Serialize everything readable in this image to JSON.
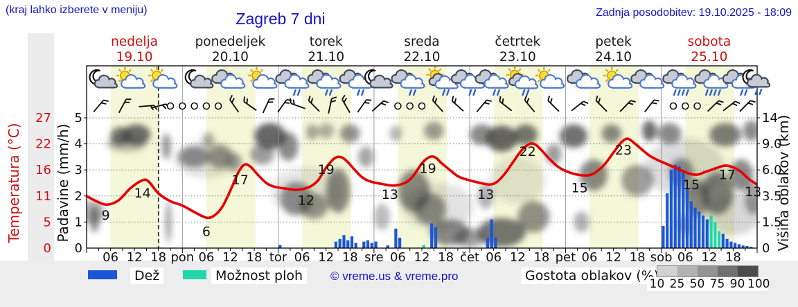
{
  "header": {
    "hint": "(kraj lahko izberete v meniju)",
    "title": "Zagreb 7 dni",
    "updated": "Zadnja posodobitev: 19.10.2025 - 18:09"
  },
  "days": [
    {
      "name": "nedelja",
      "date": "19.10",
      "red": true
    },
    {
      "name": "ponedeljek",
      "date": "20.10",
      "red": false
    },
    {
      "name": "torek",
      "date": "21.10",
      "red": false
    },
    {
      "name": "sreda",
      "date": "22.10",
      "red": false
    },
    {
      "name": "četrtek",
      "date": "23.10",
      "red": false
    },
    {
      "name": "petek",
      "date": "24.10",
      "red": false
    },
    {
      "name": "sobota",
      "date": "25.10",
      "red": true
    }
  ],
  "axes": {
    "temp_label": "Temperatura (°C)",
    "temp_ticks": [
      "27",
      "22",
      "16",
      "11",
      "5",
      "0"
    ],
    "rain_label": "Padavine (mm/h)",
    "rain_ticks": [
      "5",
      "4",
      "3",
      "2",
      "1",
      "0"
    ],
    "cloud_label": "Višina oblakov (km)",
    "cloud_ticks": [
      "14",
      "9.0",
      "6.0",
      "3.5",
      "1.5",
      "0"
    ],
    "hour_labels": [
      "06",
      "12",
      "18"
    ],
    "day_short": [
      "",
      "pon",
      "tor",
      "sre",
      "čet",
      "pet",
      "sob"
    ]
  },
  "legend": {
    "rain": "Dež",
    "showers": "Možnost ploh",
    "copyright": "© vreme.us & vreme.pro",
    "cloud_density": "Gostota oblakov (%)",
    "density_ticks": [
      "10",
      "25",
      "50",
      "75",
      "90",
      "100"
    ]
  },
  "chart_data": {
    "type": "meteogram",
    "hours_total": 168,
    "now_hour": 18,
    "daylight_hours": [
      6,
      18.3
    ],
    "temp_scale_c_to_grid": [
      [
        0,
        0
      ],
      [
        5,
        1
      ],
      [
        11,
        2
      ],
      [
        16,
        3
      ],
      [
        22,
        4
      ],
      [
        27,
        5
      ]
    ],
    "height_scale_km_to_grid": [
      [
        0,
        0
      ],
      [
        1.5,
        1
      ],
      [
        3.5,
        2
      ],
      [
        6,
        3
      ],
      [
        9,
        4
      ],
      [
        14,
        5
      ]
    ],
    "temperature": {
      "unit": "°C",
      "series": [
        [
          0,
          11
        ],
        [
          2,
          10
        ],
        [
          5,
          9
        ],
        [
          8,
          10
        ],
        [
          11,
          12.5
        ],
        [
          14,
          14
        ],
        [
          15.5,
          13.8
        ],
        [
          18,
          11.5
        ],
        [
          21,
          9.8
        ],
        [
          24,
          8.8
        ],
        [
          27,
          7.3
        ],
        [
          30,
          6
        ],
        [
          32,
          6.5
        ],
        [
          34,
          8.5
        ],
        [
          36,
          12
        ],
        [
          38,
          15.5
        ],
        [
          39.5,
          17.2
        ],
        [
          41,
          16.8
        ],
        [
          43,
          15
        ],
        [
          45,
          13.5
        ],
        [
          47,
          12.8
        ],
        [
          50,
          12.4
        ],
        [
          53,
          12.2
        ],
        [
          56,
          12.8
        ],
        [
          58,
          14
        ],
        [
          60,
          16.5
        ],
        [
          62,
          18.6
        ],
        [
          63.5,
          19
        ],
        [
          65,
          18.2
        ],
        [
          67,
          16.2
        ],
        [
          69,
          14.6
        ],
        [
          71,
          13.8
        ],
        [
          74,
          13.3
        ],
        [
          77,
          13
        ],
        [
          80,
          13.6
        ],
        [
          82,
          15
        ],
        [
          84,
          17.5
        ],
        [
          86,
          19
        ],
        [
          87.5,
          18.8
        ],
        [
          89,
          17.5
        ],
        [
          91,
          16
        ],
        [
          93,
          14.8
        ],
        [
          95,
          14.2
        ],
        [
          98,
          13.6
        ],
        [
          101,
          13.2
        ],
        [
          103,
          13.8
        ],
        [
          105,
          15.5
        ],
        [
          107,
          18
        ],
        [
          109,
          20.5
        ],
        [
          111,
          22
        ],
        [
          112.5,
          21.8
        ],
        [
          114,
          20.5
        ],
        [
          116,
          18.5
        ],
        [
          118,
          16.8
        ],
        [
          120,
          15.8
        ],
        [
          123,
          15.1
        ],
        [
          126,
          15
        ],
        [
          128,
          15.8
        ],
        [
          130,
          17.5
        ],
        [
          132,
          20
        ],
        [
          134,
          22.3
        ],
        [
          135.5,
          23
        ],
        [
          137,
          22.3
        ],
        [
          139,
          20.8
        ],
        [
          141,
          19.3
        ],
        [
          143,
          18.3
        ],
        [
          145,
          17.5
        ],
        [
          148,
          16.3
        ],
        [
          151,
          15.3
        ],
        [
          153,
          15.1
        ],
        [
          155,
          15.6
        ],
        [
          158,
          16.5
        ],
        [
          160,
          17
        ],
        [
          162,
          16.6
        ],
        [
          164,
          15.6
        ],
        [
          166,
          14.2
        ],
        [
          168,
          13.2
        ]
      ],
      "labels": [
        [
          4.8,
          1.25,
          "9"
        ],
        [
          14,
          2.1,
          "14"
        ],
        [
          30,
          0.62,
          "6"
        ],
        [
          38.5,
          2.6,
          "17"
        ],
        [
          55,
          1.82,
          "12"
        ],
        [
          60,
          3.0,
          "19"
        ],
        [
          76,
          2.05,
          "13"
        ],
        [
          85.5,
          3.05,
          "19"
        ],
        [
          100,
          2.05,
          "13"
        ],
        [
          110.5,
          3.7,
          "22"
        ],
        [
          123.5,
          2.3,
          "15"
        ],
        [
          134.5,
          3.75,
          "23"
        ],
        [
          151.5,
          2.42,
          "15"
        ],
        [
          160.5,
          2.8,
          "17"
        ],
        [
          167,
          2.15,
          "13"
        ]
      ]
    },
    "rain": {
      "unit": "mm/h",
      "bars": [
        [
          48,
          0.12,
          "r"
        ],
        [
          62,
          0.25,
          "r"
        ],
        [
          63,
          0.35,
          "r"
        ],
        [
          64,
          0.5,
          "r"
        ],
        [
          65,
          0.3,
          "r"
        ],
        [
          66,
          0.45,
          "r"
        ],
        [
          67,
          0.2,
          "r"
        ],
        [
          69,
          0.25,
          "r"
        ],
        [
          70,
          0.3,
          "r"
        ],
        [
          71,
          0.2,
          "r"
        ],
        [
          72,
          0.25,
          "r"
        ],
        [
          75,
          0.1,
          "r"
        ],
        [
          77,
          0.75,
          "r"
        ],
        [
          78,
          0.4,
          "r"
        ],
        [
          84,
          0.12,
          "s"
        ],
        [
          86,
          0.95,
          "r"
        ],
        [
          87,
          0.8,
          "r"
        ],
        [
          100,
          0.4,
          "r"
        ],
        [
          101,
          1.1,
          "r"
        ],
        [
          102,
          0.4,
          "r"
        ],
        [
          144,
          0.85,
          "r"
        ],
        [
          145,
          2.1,
          "r"
        ],
        [
          146,
          3.0,
          "r"
        ],
        [
          147,
          3.2,
          "r"
        ],
        [
          148,
          3.15,
          "r"
        ],
        [
          149,
          2.9,
          "r"
        ],
        [
          150,
          2.3,
          "r"
        ],
        [
          151,
          1.8,
          "r"
        ],
        [
          152,
          1.55,
          "r"
        ],
        [
          153,
          1.4,
          "r"
        ],
        [
          154,
          1.25,
          "r"
        ],
        [
          155,
          1.1,
          "r"
        ],
        [
          156,
          1.25,
          "s"
        ],
        [
          157,
          1.0,
          "s"
        ],
        [
          158,
          0.65,
          "s"
        ],
        [
          159,
          0.55,
          "r"
        ],
        [
          160,
          0.35,
          "r"
        ],
        [
          161,
          0.25,
          "r"
        ],
        [
          162,
          0.2,
          "r"
        ],
        [
          163,
          0.15,
          "r"
        ],
        [
          164,
          0.1,
          "r"
        ],
        [
          165,
          0.08,
          "r"
        ],
        [
          166,
          0.05,
          "r"
        ]
      ]
    },
    "clouds": {
      "note": "blobs [hour, level 0-5 grid, radius-hours, radius-levels, darkness]",
      "blobs": [
        [
          1.5,
          1.4,
          3,
          0.45,
          0.4
        ],
        [
          2,
          1.1,
          1.2,
          0.5,
          0.55
        ],
        [
          8.5,
          4.3,
          2.5,
          0.35,
          0.7
        ],
        [
          12.5,
          4.35,
          3.5,
          0.4,
          0.75
        ],
        [
          10,
          4.0,
          5,
          0.3,
          0.35
        ],
        [
          20,
          3.9,
          1.2,
          0.5,
          0.5
        ],
        [
          20.5,
          1.0,
          0.8,
          0.8,
          0.45
        ],
        [
          27,
          3.5,
          4,
          0.4,
          0.55
        ],
        [
          33.5,
          3.5,
          3,
          0.45,
          0.5
        ],
        [
          30.5,
          4.15,
          1.5,
          0.3,
          0.4
        ],
        [
          37,
          3.3,
          2,
          0.35,
          0.45
        ],
        [
          44,
          3.6,
          3,
          0.4,
          0.5
        ],
        [
          46,
          4.3,
          4,
          0.5,
          0.78
        ],
        [
          50.5,
          3.9,
          2.5,
          0.55,
          0.6
        ],
        [
          52.5,
          1.9,
          4,
          0.65,
          0.55
        ],
        [
          57,
          1.6,
          3.5,
          0.5,
          0.5
        ],
        [
          63,
          2.2,
          3,
          0.85,
          0.6
        ],
        [
          56.5,
          4.45,
          1.5,
          0.3,
          0.45
        ],
        [
          60,
          4.5,
          2,
          0.3,
          0.4
        ],
        [
          66,
          4.4,
          2.5,
          0.35,
          0.55
        ],
        [
          70,
          3.5,
          2,
          0.4,
          0.45
        ],
        [
          74,
          1.2,
          2,
          0.5,
          0.35
        ],
        [
          77.5,
          4.4,
          1.5,
          0.3,
          0.4
        ],
        [
          82,
          2.2,
          4,
          0.8,
          0.6
        ],
        [
          86,
          1.5,
          4,
          0.6,
          0.55
        ],
        [
          87,
          4.5,
          2.5,
          0.35,
          0.5
        ],
        [
          91,
          0.6,
          5,
          0.5,
          0.6
        ],
        [
          96,
          0.4,
          4,
          0.35,
          0.5
        ],
        [
          99,
          4.35,
          3,
          0.4,
          0.6
        ],
        [
          100,
          2.0,
          2,
          0.5,
          0.4
        ],
        [
          104,
          4.2,
          4,
          0.5,
          0.78
        ],
        [
          104,
          0.6,
          6,
          0.55,
          0.7
        ],
        [
          110,
          4.35,
          3,
          0.4,
          0.7
        ],
        [
          112,
          1.2,
          4,
          0.6,
          0.55
        ],
        [
          117,
          3.6,
          2,
          0.4,
          0.5
        ],
        [
          122,
          4.3,
          3.5,
          0.45,
          0.72
        ],
        [
          124,
          1.0,
          2,
          0.4,
          0.4
        ],
        [
          127,
          2.8,
          3.5,
          0.6,
          0.6
        ],
        [
          131.5,
          4.4,
          2.5,
          0.35,
          0.6
        ],
        [
          138,
          2.6,
          4,
          0.6,
          0.5
        ],
        [
          141,
          4.5,
          1.8,
          0.4,
          0.75
        ],
        [
          146,
          4.4,
          3,
          0.4,
          0.6
        ],
        [
          149,
          2.9,
          3,
          0.55,
          0.55
        ],
        [
          150,
          0.9,
          2,
          0.4,
          0.45
        ],
        [
          153,
          1.9,
          3,
          0.7,
          0.6
        ],
        [
          158,
          2.1,
          4,
          0.8,
          0.65
        ],
        [
          160,
          4.35,
          4,
          0.45,
          0.65
        ],
        [
          164,
          2.8,
          3,
          0.6,
          0.6
        ],
        [
          166.5,
          4.5,
          2,
          0.4,
          0.6
        ],
        [
          167,
          1.9,
          2,
          0.6,
          0.5
        ],
        [
          30,
          3.4,
          8,
          0.7,
          0.15
        ],
        [
          55,
          2.2,
          9,
          0.9,
          0.12
        ],
        [
          88,
          1.6,
          9,
          0.9,
          0.15
        ],
        [
          108,
          2.6,
          7,
          0.9,
          0.12
        ],
        [
          150,
          3.1,
          10,
          1.1,
          0.18
        ],
        [
          162,
          1.3,
          7,
          0.8,
          0.2
        ]
      ]
    },
    "wind": [
      [
        3,
        "b",
        40
      ],
      [
        9,
        "b",
        28
      ],
      [
        15,
        "b",
        85
      ],
      [
        18,
        "b",
        75
      ],
      [
        21,
        "c",
        0
      ],
      [
        24,
        "c",
        0
      ],
      [
        27,
        "c",
        0
      ],
      [
        30,
        "c",
        0
      ],
      [
        33,
        "c",
        0
      ],
      [
        37,
        "b",
        -35
      ],
      [
        41,
        "b",
        -55
      ],
      [
        45,
        "b",
        25
      ],
      [
        49,
        "b",
        35
      ],
      [
        53,
        "b",
        -70
      ],
      [
        57,
        "b",
        -45
      ],
      [
        61,
        "b",
        12
      ],
      [
        65,
        "b",
        -30
      ],
      [
        69,
        "b",
        35
      ],
      [
        73,
        "b",
        48
      ],
      [
        78,
        "c",
        0
      ],
      [
        81,
        "c",
        0
      ],
      [
        84,
        "c",
        0
      ],
      [
        88,
        "b",
        -42
      ],
      [
        93,
        "b",
        -48
      ],
      [
        99,
        "b",
        40
      ],
      [
        105,
        "b",
        -52
      ],
      [
        111,
        "b",
        -40
      ],
      [
        117,
        "b",
        -46
      ],
      [
        123,
        "b",
        52
      ],
      [
        129,
        "b",
        -45
      ],
      [
        135,
        "b",
        44
      ],
      [
        141,
        "b",
        38
      ],
      [
        147,
        "c",
        0
      ],
      [
        150,
        "c",
        0
      ],
      [
        153,
        "c",
        0
      ],
      [
        157,
        "b",
        46
      ],
      [
        161,
        "b",
        52
      ],
      [
        165,
        "b",
        45
      ]
    ],
    "icons": [
      [
        4,
        "mc"
      ],
      [
        11,
        "sc"
      ],
      [
        19,
        "sc"
      ],
      [
        28,
        "mc"
      ],
      [
        36,
        "c"
      ],
      [
        44,
        "sc"
      ],
      [
        52,
        "cr"
      ],
      [
        60,
        "cr"
      ],
      [
        68,
        "cr"
      ],
      [
        73,
        "mc"
      ],
      [
        81,
        "cr"
      ],
      [
        89,
        "scr"
      ],
      [
        96,
        "cr"
      ],
      [
        102,
        "cr"
      ],
      [
        109,
        "scr"
      ],
      [
        116,
        "sc"
      ],
      [
        125,
        "c"
      ],
      [
        133,
        "sc"
      ],
      [
        141,
        "c"
      ],
      [
        149,
        "crh"
      ],
      [
        157,
        "crh"
      ],
      [
        164,
        "cr"
      ],
      [
        167.5,
        "mcr"
      ]
    ],
    "icon_types": {
      "mc": "moon-cloud",
      "sc": "sun-cloud",
      "c": "cloud",
      "cr": "cloud-rain",
      "crh": "cloud-heavy-rain",
      "scr": "sun-cloud-rain",
      "mcr": "moon-cloud-rain"
    },
    "colors": {
      "blue_text": "#1414cc",
      "red": "#cc1111",
      "curve": "#e60000",
      "rain_bar": "#1a57d8",
      "shower_bar": "#22d6ab",
      "day_band": "#f5f8d8",
      "grid": "#777777",
      "separator": "#999999",
      "cloud": "#3c3c3c",
      "colorbar": [
        "#d2d2d2",
        "#b3b3b3",
        "#939393",
        "#6f6f6f",
        "#4b4b4b"
      ]
    }
  }
}
